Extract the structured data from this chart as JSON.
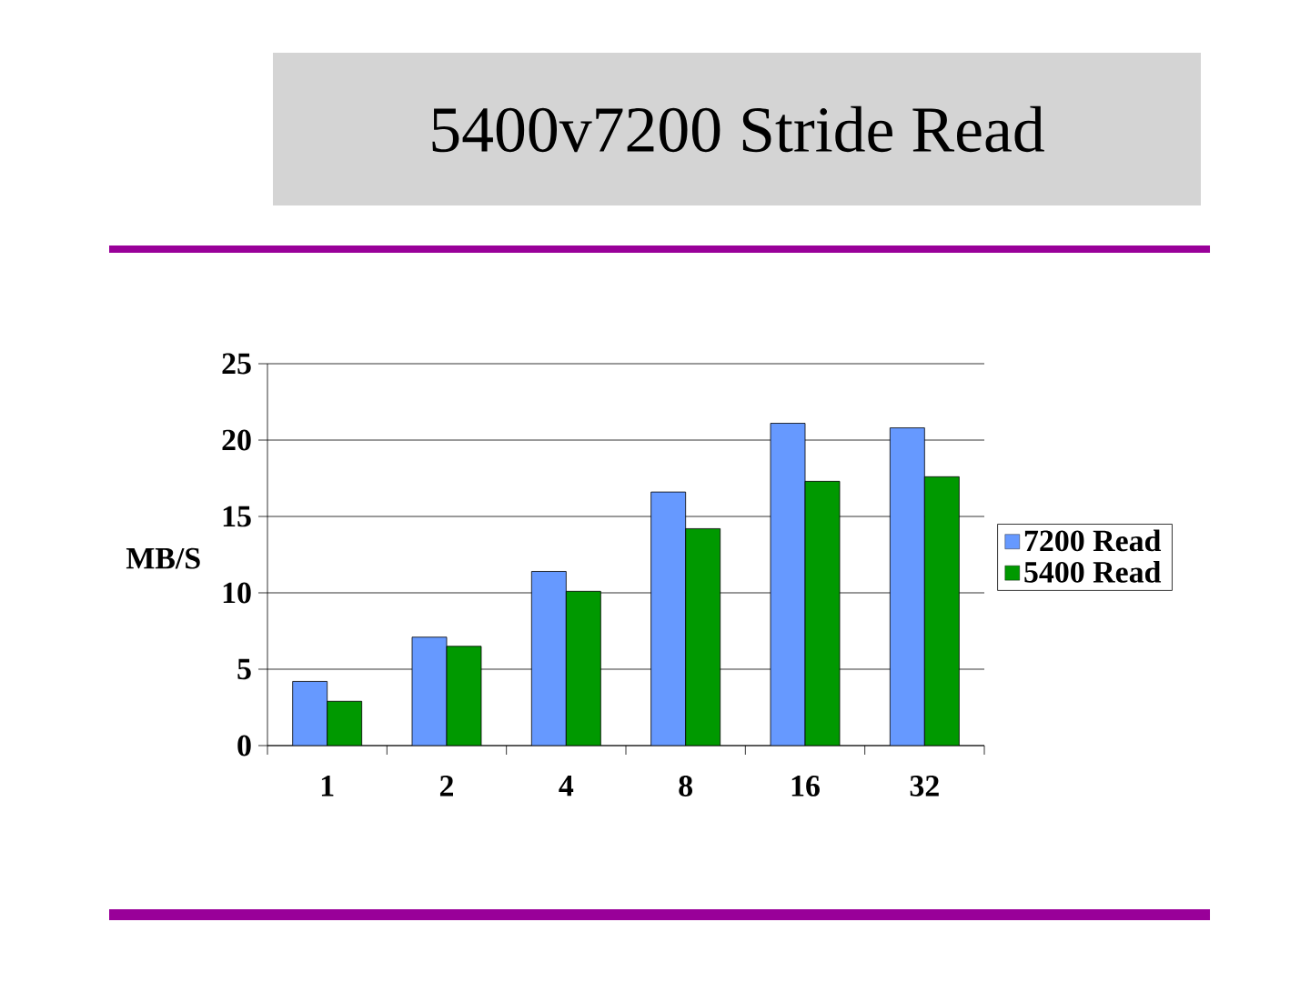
{
  "chart_data": {
    "type": "bar",
    "title": "5400v7200 Stride Read",
    "ylabel": "MB/S",
    "categories": [
      "1",
      "2",
      "4",
      "8",
      "16",
      "32"
    ],
    "series": [
      {
        "name": "7200 Read",
        "color": "#6699ff",
        "values": [
          4.2,
          7.1,
          11.4,
          16.6,
          21.1,
          20.8
        ]
      },
      {
        "name": "5400 Read",
        "color": "#009900",
        "values": [
          2.9,
          6.5,
          10.1,
          14.2,
          17.3,
          17.6
        ]
      }
    ],
    "ylim": [
      0,
      25
    ],
    "yticks": [
      0,
      5,
      10,
      15,
      20,
      25
    ],
    "grid": "y",
    "legend": "right"
  }
}
